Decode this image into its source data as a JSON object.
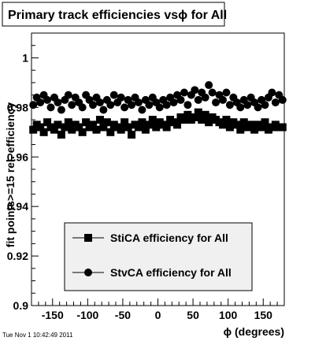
{
  "timestamp": "Tue Nov  1 10:42:49 2011",
  "chart_data": {
    "type": "scatter",
    "title": "Primary track efficiencies vsϕ for All",
    "xlabel": "ϕ (degrees)",
    "ylabel": "fit points>=15 rel. efficiency",
    "xlim": [
      -180,
      180
    ],
    "ylim": [
      0.9,
      1.01
    ],
    "xticks": [
      -150,
      -100,
      -50,
      0,
      50,
      100,
      150
    ],
    "xtick_labels": [
      "-150",
      "-100",
      "-50",
      "0",
      "50",
      "100",
      "150"
    ],
    "yticks": [
      0.9,
      0.92,
      0.94,
      0.96,
      0.98,
      1.0
    ],
    "ytick_labels": [
      "0.9",
      "0.92",
      "0.94",
      "0.96",
      "0.98",
      "1"
    ],
    "grid": false,
    "legend_position": "bottom-center",
    "series": [
      {
        "name": "StiCA efficiency  for All",
        "marker": "square",
        "color": "#000000",
        "x": [
          -177.5,
          -172.5,
          -167.5,
          -162.5,
          -157.5,
          -152.5,
          -147.5,
          -142.5,
          -137.5,
          -132.5,
          -127.5,
          -122.5,
          -117.5,
          -112.5,
          -107.5,
          -102.5,
          -97.5,
          -92.5,
          -87.5,
          -82.5,
          -77.5,
          -72.5,
          -67.5,
          -62.5,
          -57.5,
          -52.5,
          -47.5,
          -42.5,
          -37.5,
          -32.5,
          -27.5,
          -22.5,
          -17.5,
          -12.5,
          -7.5,
          -2.5,
          2.5,
          7.5,
          12.5,
          17.5,
          22.5,
          27.5,
          32.5,
          37.5,
          42.5,
          47.5,
          52.5,
          57.5,
          62.5,
          67.5,
          72.5,
          77.5,
          82.5,
          87.5,
          92.5,
          97.5,
          102.5,
          107.5,
          112.5,
          117.5,
          122.5,
          127.5,
          132.5,
          137.5,
          142.5,
          147.5,
          152.5,
          157.5,
          162.5,
          167.5,
          172.5,
          177.5
        ],
        "y": [
          0.971,
          0.973,
          0.972,
          0.97,
          0.974,
          0.972,
          0.971,
          0.973,
          0.969,
          0.972,
          0.974,
          0.971,
          0.973,
          0.972,
          0.97,
          0.974,
          0.972,
          0.973,
          0.971,
          0.975,
          0.972,
          0.974,
          0.97,
          0.973,
          0.972,
          0.971,
          0.974,
          0.972,
          0.969,
          0.973,
          0.972,
          0.974,
          0.971,
          0.973,
          0.975,
          0.972,
          0.974,
          0.973,
          0.972,
          0.975,
          0.974,
          0.973,
          0.976,
          0.975,
          0.977,
          0.975,
          0.976,
          0.978,
          0.975,
          0.977,
          0.974,
          0.976,
          0.975,
          0.974,
          0.973,
          0.975,
          0.972,
          0.974,
          0.973,
          0.971,
          0.974,
          0.972,
          0.973,
          0.971,
          0.973,
          0.972,
          0.974,
          0.971,
          0.972,
          0.973,
          0.972,
          0.972
        ]
      },
      {
        "name": "StvCA efficiency  for All",
        "marker": "circle",
        "color": "#000000",
        "x": [
          -177.5,
          -172.5,
          -167.5,
          -162.5,
          -157.5,
          -152.5,
          -147.5,
          -142.5,
          -137.5,
          -132.5,
          -127.5,
          -122.5,
          -117.5,
          -112.5,
          -107.5,
          -102.5,
          -97.5,
          -92.5,
          -87.5,
          -82.5,
          -77.5,
          -72.5,
          -67.5,
          -62.5,
          -57.5,
          -52.5,
          -47.5,
          -42.5,
          -37.5,
          -32.5,
          -27.5,
          -22.5,
          -17.5,
          -12.5,
          -7.5,
          -2.5,
          2.5,
          7.5,
          12.5,
          17.5,
          22.5,
          27.5,
          32.5,
          37.5,
          42.5,
          47.5,
          52.5,
          57.5,
          62.5,
          67.5,
          72.5,
          77.5,
          82.5,
          87.5,
          92.5,
          97.5,
          102.5,
          107.5,
          112.5,
          117.5,
          122.5,
          127.5,
          132.5,
          137.5,
          142.5,
          147.5,
          152.5,
          157.5,
          162.5,
          167.5,
          172.5,
          177.5
        ],
        "y": [
          0.981,
          0.984,
          0.982,
          0.985,
          0.983,
          0.98,
          0.984,
          0.982,
          0.979,
          0.983,
          0.985,
          0.981,
          0.984,
          0.982,
          0.98,
          0.985,
          0.983,
          0.981,
          0.984,
          0.982,
          0.979,
          0.983,
          0.981,
          0.985,
          0.982,
          0.984,
          0.98,
          0.983,
          0.981,
          0.984,
          0.982,
          0.979,
          0.983,
          0.981,
          0.984,
          0.982,
          0.98,
          0.983,
          0.981,
          0.984,
          0.982,
          0.985,
          0.983,
          0.986,
          0.981,
          0.985,
          0.987,
          0.983,
          0.986,
          0.984,
          0.989,
          0.986,
          0.982,
          0.985,
          0.983,
          0.986,
          0.981,
          0.984,
          0.982,
          0.98,
          0.983,
          0.981,
          0.984,
          0.982,
          0.98,
          0.983,
          0.981,
          0.984,
          0.986,
          0.982,
          0.985,
          0.983
        ]
      }
    ]
  }
}
